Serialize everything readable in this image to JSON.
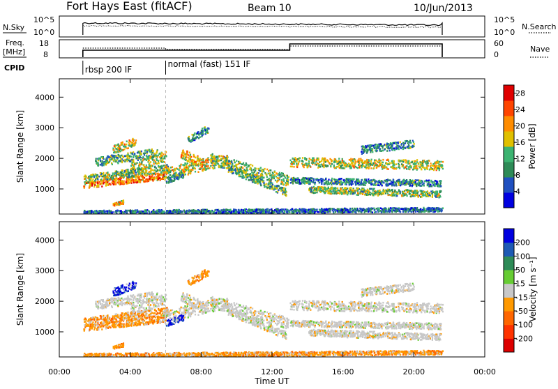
{
  "header": {
    "station": "Fort Hays East (fitACF)",
    "beam": "Beam 10",
    "date": "10/Jun/2013"
  },
  "top_panels": {
    "nsky": {
      "label": "N.Sky",
      "right_label": "N.Search",
      "ticks_left": [
        "10^5",
        "10^0"
      ],
      "ticks_right": [
        "10^5",
        "10^0"
      ]
    },
    "freq": {
      "label_line1": "Freq.",
      "label_line2": "[MHz]",
      "right_label": "Nave",
      "ticks_left": [
        "18",
        "8"
      ],
      "ticks_right": [
        "60",
        "0"
      ]
    },
    "cpid": {
      "label": "CPID",
      "modes": [
        {
          "label": "rbsp 200 IF",
          "start_hour": 1.33
        },
        {
          "label": "normal (fast) 151 IF",
          "start_hour": 6.0
        }
      ]
    }
  },
  "chart_data": [
    {
      "type": "heatmap",
      "name": "power",
      "xlabel": "Time UT",
      "ylabel": "Slant Range [km]",
      "xlim": [
        0,
        24
      ],
      "ylim": [
        180,
        4600
      ],
      "x_ticks": [
        "00:00",
        "04:00",
        "08:00",
        "12:00",
        "16:00",
        "20:00",
        "00:00"
      ],
      "x_tick_values": [
        0,
        4,
        8,
        12,
        16,
        20,
        24
      ],
      "y_ticks": [
        1000,
        2000,
        3000,
        4000
      ],
      "colorbar": {
        "label": "Power [dB]",
        "ticks": [
          4,
          8,
          12,
          16,
          20,
          24,
          28
        ],
        "range": [
          0,
          30
        ],
        "colors": [
          "#0000e0",
          "#2050c0",
          "#2e8b57",
          "#3cb371",
          "#e0c000",
          "#ff8c00",
          "#ff4500",
          "#e00000"
        ]
      }
    },
    {
      "type": "heatmap",
      "name": "velocity",
      "xlabel": "Time UT",
      "ylabel": "Slant Range [km]",
      "xlim": [
        0,
        24
      ],
      "ylim": [
        180,
        4600
      ],
      "x_ticks": [
        "00:00",
        "04:00",
        "08:00",
        "12:00",
        "16:00",
        "20:00",
        "00:00"
      ],
      "x_tick_values": [
        0,
        4,
        8,
        12,
        16,
        20,
        24
      ],
      "y_ticks": [
        1000,
        2000,
        3000,
        4000
      ],
      "colorbar": {
        "label": "Velocity [m s⁻¹]",
        "ticks": [
          200,
          100,
          50,
          15,
          -15,
          -50,
          -100,
          -200
        ],
        "colors": [
          "#0000e0",
          "#1e5ab4",
          "#2e8b57",
          "#66cc33",
          "#c8c8c8",
          "#ff9900",
          "#ff6600",
          "#ff3300",
          "#dd0000"
        ]
      }
    }
  ],
  "data_coverage": {
    "start_hour": 1.33,
    "end_hour": 21.6,
    "gap_hour": 13.0
  }
}
